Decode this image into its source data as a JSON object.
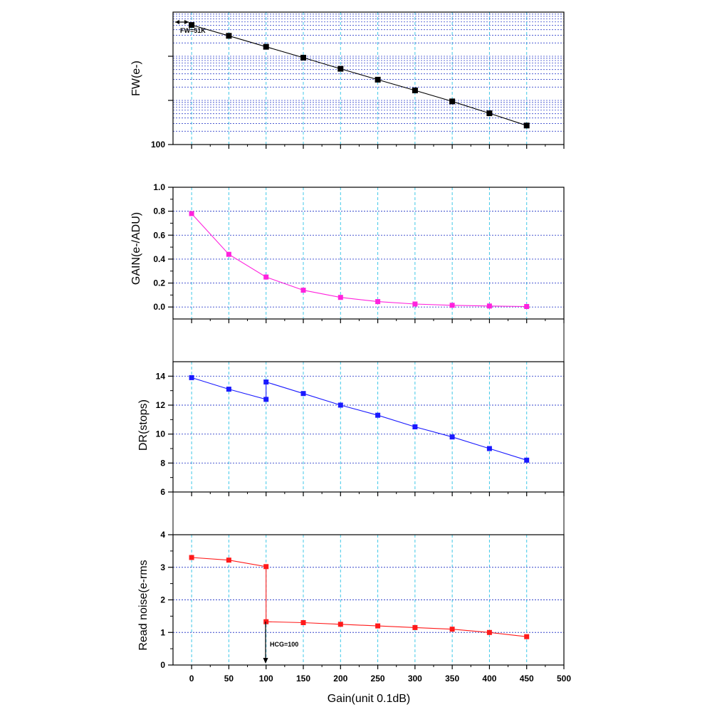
{
  "chart_data": [
    {
      "id": "fw",
      "type": "line",
      "ylabel": "FW(e-)",
      "xlabel": "",
      "yscale": "log",
      "xlim": [
        -25,
        500
      ],
      "ylim": [
        100,
        100000
      ],
      "yticks": [
        {
          "value": 100,
          "label": "100"
        }
      ],
      "xticks": [
        0,
        50,
        100,
        150,
        200,
        250,
        300,
        350,
        400,
        450,
        500
      ],
      "show_x_tick_labels": false,
      "grid": {
        "vertical": true,
        "horizontal_minor": true
      },
      "colors": {
        "series": "#000000",
        "grid_h": "#3344cc",
        "grid_v": "#40c8e8"
      },
      "series": [
        {
          "x": [
            0,
            50,
            100,
            150,
            200,
            250,
            300,
            350,
            400,
            450
          ],
          "values": [
            51000,
            29000,
            16400,
            9300,
            5200,
            2950,
            1680,
            950,
            510,
            270
          ]
        }
      ],
      "annotations": [
        {
          "text": "FW=51K",
          "x": 0,
          "y": 51000,
          "arrow": "double-horizontal"
        }
      ]
    },
    {
      "id": "gain",
      "type": "line",
      "ylabel": "GAIN(e-/ADU)",
      "xlabel": "",
      "yscale": "linear",
      "xlim": [
        -25,
        500
      ],
      "ylim": [
        -0.1,
        1.0
      ],
      "yticks": [
        {
          "value": 0.0,
          "label": "0.0"
        },
        {
          "value": 0.2,
          "label": "0.2"
        },
        {
          "value": 0.4,
          "label": "0.4"
        },
        {
          "value": 0.6,
          "label": "0.6"
        },
        {
          "value": 0.8,
          "label": "0.8"
        },
        {
          "value": 1.0,
          "label": "1.0"
        }
      ],
      "xticks": [
        0,
        50,
        100,
        150,
        200,
        250,
        300,
        350,
        400,
        450,
        500
      ],
      "show_x_tick_labels": false,
      "grid": {
        "vertical": true,
        "horizontal": true
      },
      "colors": {
        "series": "#ff22dd",
        "grid_h": "#3344cc",
        "grid_v": "#40c8e8"
      },
      "series": [
        {
          "x": [
            0,
            50,
            100,
            150,
            200,
            250,
            300,
            350,
            400,
            450
          ],
          "values": [
            0.78,
            0.44,
            0.25,
            0.14,
            0.08,
            0.045,
            0.025,
            0.014,
            0.008,
            0.004
          ]
        }
      ]
    },
    {
      "id": "dr",
      "type": "line",
      "ylabel": "DR(stops)",
      "xlabel": "",
      "yscale": "linear",
      "xlim": [
        -25,
        500
      ],
      "ylim": [
        6,
        15
      ],
      "yticks": [
        {
          "value": 6,
          "label": "6"
        },
        {
          "value": 8,
          "label": "8"
        },
        {
          "value": 10,
          "label": "10"
        },
        {
          "value": 12,
          "label": "12"
        },
        {
          "value": 14,
          "label": "14"
        }
      ],
      "xticks": [
        0,
        50,
        100,
        150,
        200,
        250,
        300,
        350,
        400,
        450,
        500
      ],
      "show_x_tick_labels": false,
      "grid": {
        "vertical": true,
        "horizontal": true
      },
      "colors": {
        "series": "#1a1aff",
        "grid_h": "#3344cc",
        "grid_v": "#40c8e8"
      },
      "series": [
        {
          "x": [
            0,
            50,
            100,
            100,
            150,
            200,
            250,
            300,
            350,
            400,
            450
          ],
          "values": [
            13.9,
            13.1,
            12.4,
            13.6,
            12.8,
            12.0,
            11.3,
            10.5,
            9.8,
            9.0,
            8.2
          ]
        }
      ]
    },
    {
      "id": "rn",
      "type": "line",
      "ylabel": "Read noise(e-rms",
      "xlabel": "Gain(unit 0.1dB)",
      "yscale": "linear",
      "xlim": [
        -25,
        500
      ],
      "ylim": [
        0,
        4
      ],
      "yticks": [
        {
          "value": 0,
          "label": "0"
        },
        {
          "value": 1,
          "label": "1"
        },
        {
          "value": 2,
          "label": "2"
        },
        {
          "value": 3,
          "label": "3"
        },
        {
          "value": 4,
          "label": "4"
        }
      ],
      "xticks": [
        0,
        50,
        100,
        150,
        200,
        250,
        300,
        350,
        400,
        450,
        500
      ],
      "show_x_tick_labels": true,
      "grid": {
        "vertical": true,
        "horizontal": true
      },
      "colors": {
        "series": "#ff1a1a",
        "grid_h": "#3344cc",
        "grid_v": "#40c8e8"
      },
      "series": [
        {
          "x": [
            0,
            50,
            100,
            100,
            150,
            200,
            250,
            300,
            350,
            400,
            450
          ],
          "values": [
            3.3,
            3.22,
            3.02,
            1.33,
            1.3,
            1.25,
            1.2,
            1.15,
            1.1,
            1.0,
            0.87
          ]
        }
      ],
      "annotations": [
        {
          "text": "HCG=100",
          "x": 100,
          "y": 1.33,
          "arrow": "down-to-axis"
        }
      ]
    }
  ]
}
